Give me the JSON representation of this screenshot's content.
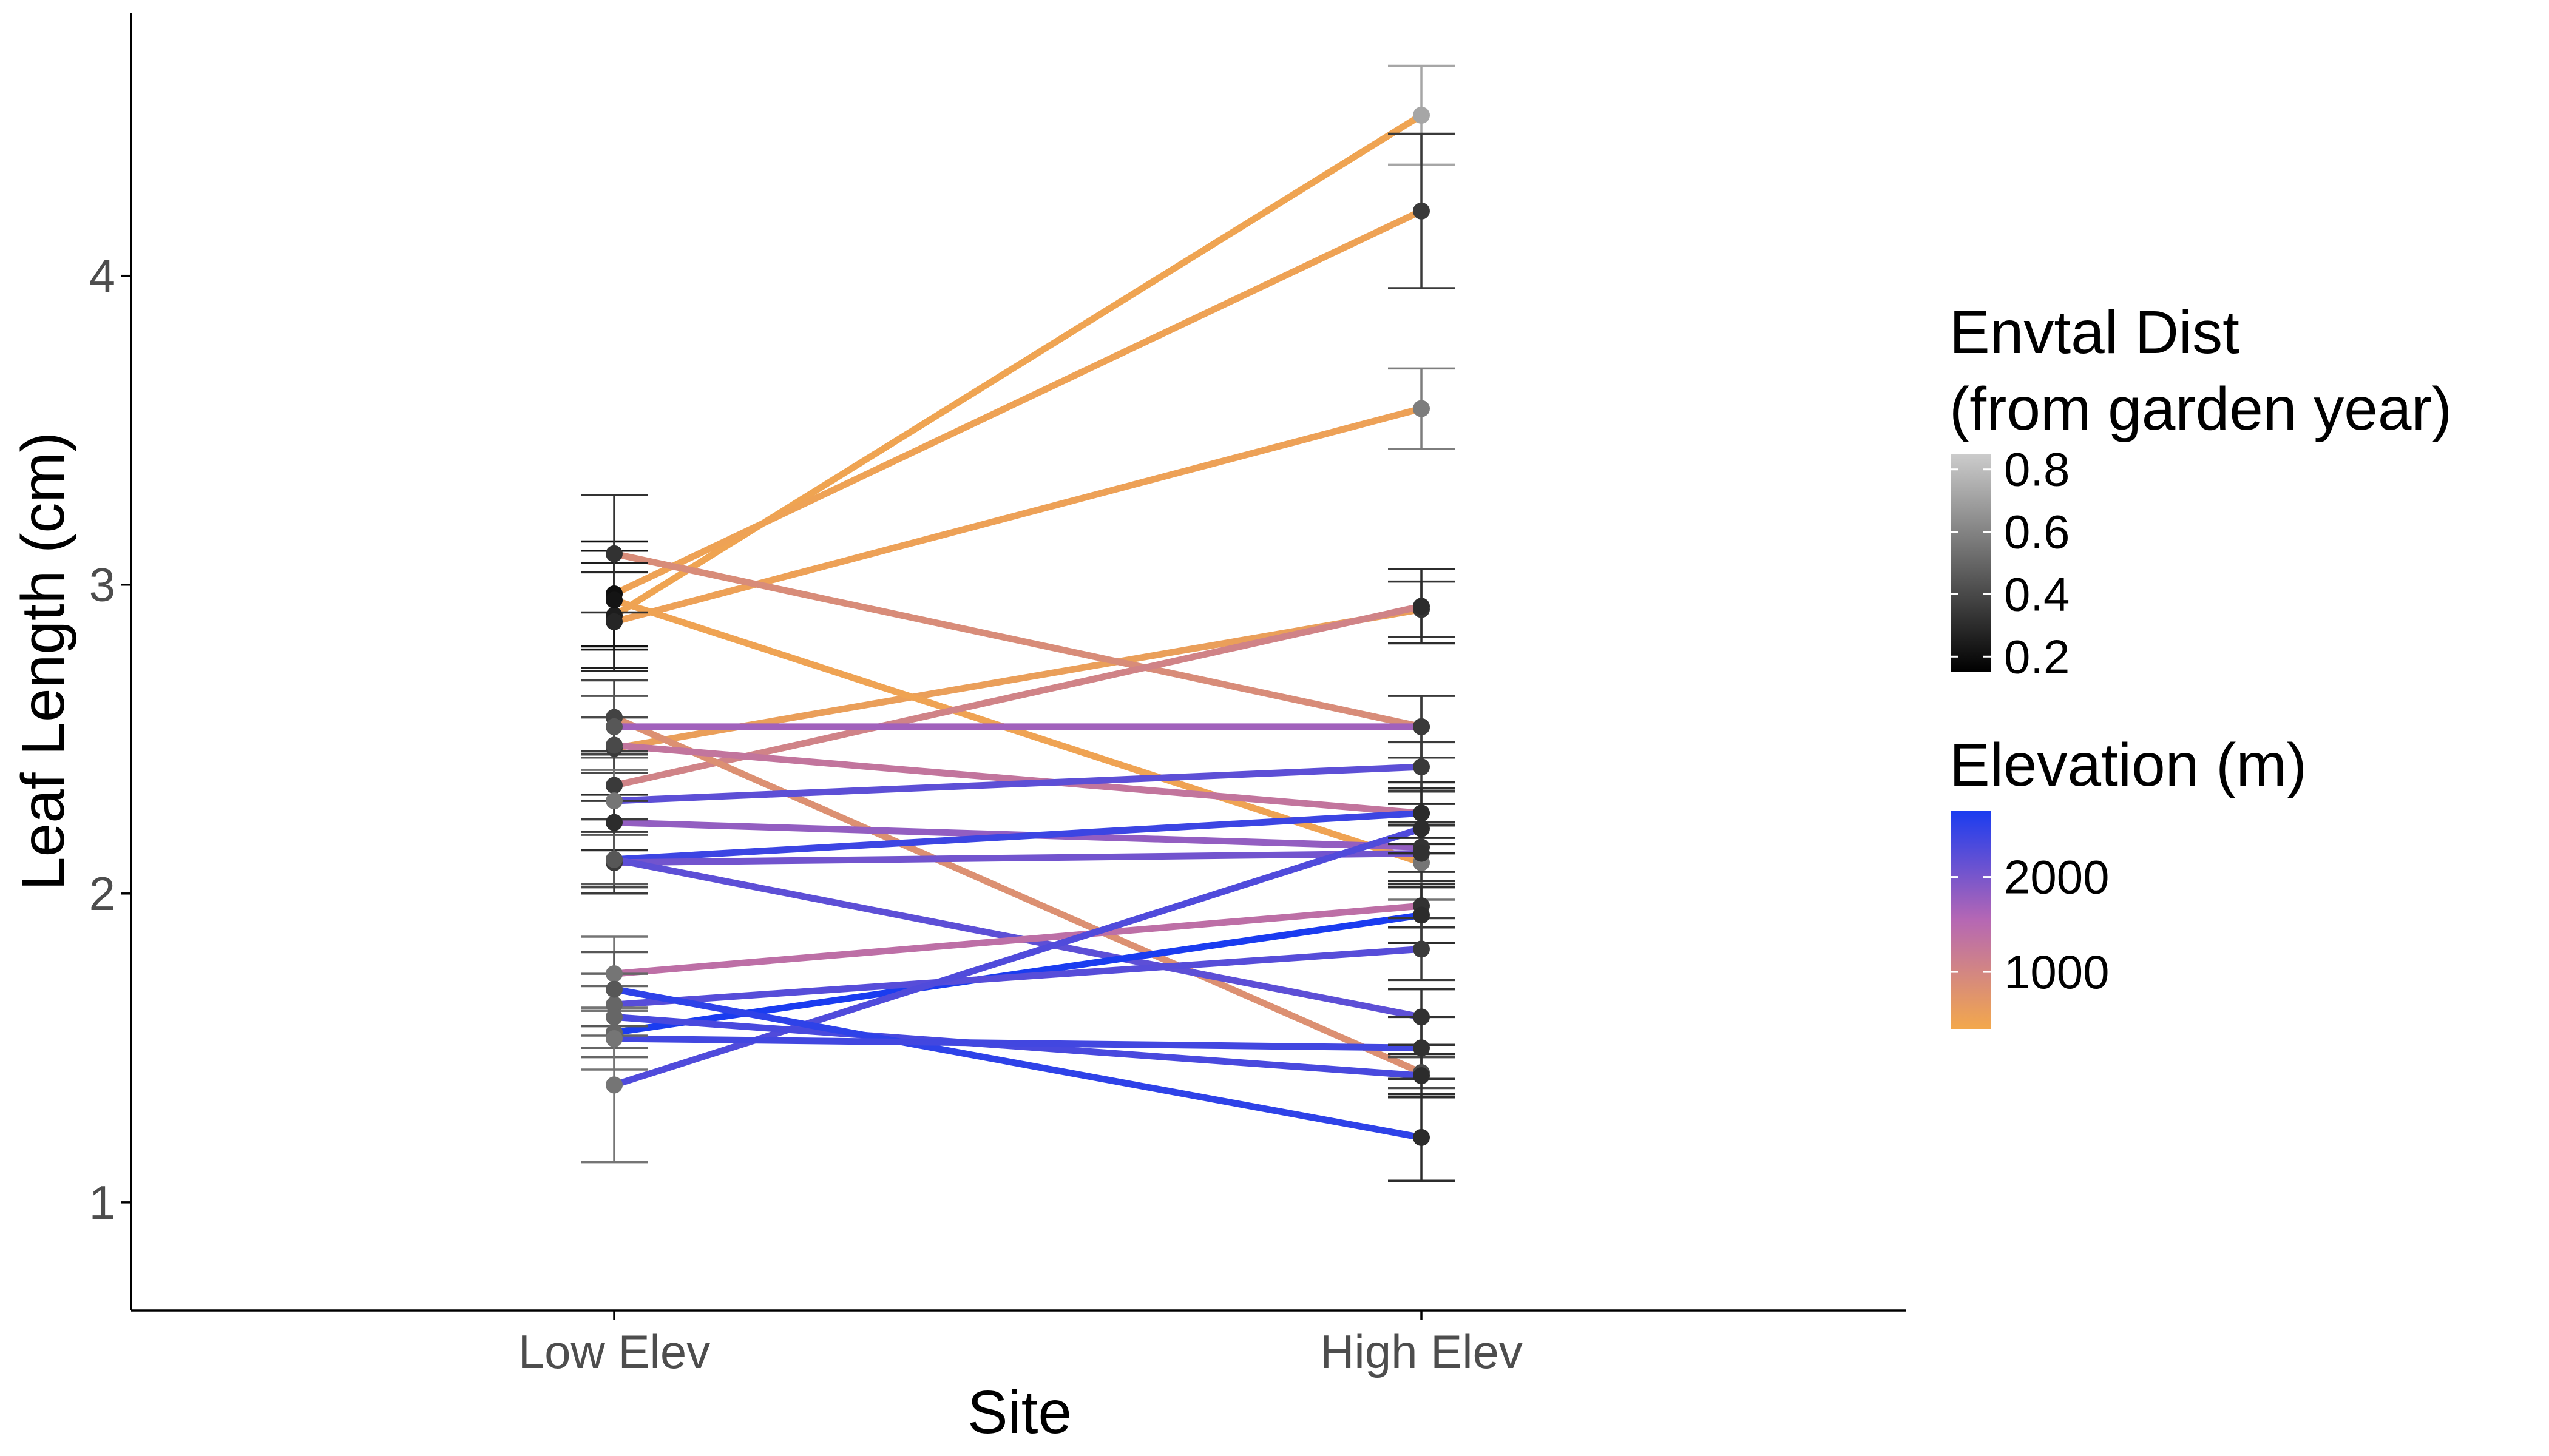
{
  "chart_data": {
    "type": "line",
    "xlabel": "Site",
    "ylabel": "Leaf Length (cm)",
    "categories": [
      "Low Elev",
      "High Elev"
    ],
    "y_ticks": [
      "1",
      "2",
      "3",
      "4"
    ],
    "ylim": [
      0.65,
      4.85
    ],
    "grid": false,
    "legend_position": "right",
    "legend_fill": {
      "title_lines": [
        "Envtal Dist",
        "(from garden year)"
      ],
      "labels": [
        "0.8",
        "0.6",
        "0.4",
        "0.2"
      ],
      "values": [
        0.8,
        0.6,
        0.4,
        0.2
      ],
      "range": [
        0.15,
        0.85
      ],
      "color_low": "#000000",
      "color_high": "#cccccc"
    },
    "legend_color": {
      "title": "Elevation (m)",
      "labels": [
        "2000",
        "1000"
      ],
      "values": [
        2000,
        1000
      ],
      "range": [
        400,
        2700
      ],
      "color_low": "#f3a84c",
      "color_mid": "#b567b4",
      "color_high": "#1a3cf0"
    },
    "series": [
      {
        "elevation": 470,
        "low": {
          "y": 2.9,
          "err": 0.17,
          "dist": 0.25
        },
        "high": {
          "y": 4.52,
          "err": 0.16,
          "dist": 0.72
        }
      },
      {
        "elevation": 500,
        "low": {
          "y": 2.97,
          "err": 0.17,
          "dist": 0.2
        },
        "high": {
          "y": 4.21,
          "err": 0.25,
          "dist": 0.35
        }
      },
      {
        "elevation": 520,
        "low": {
          "y": 2.88,
          "err": 0.16,
          "dist": 0.28
        },
        "high": {
          "y": 3.57,
          "err": 0.13,
          "dist": 0.58
        }
      },
      {
        "elevation": 560,
        "low": {
          "y": 2.47,
          "err": 0.17,
          "dist": 0.35
        },
        "high": {
          "y": 2.92,
          "err": 0.09,
          "dist": 0.33
        }
      },
      {
        "elevation": 480,
        "low": {
          "y": 2.95,
          "err": 0.16,
          "dist": 0.22
        },
        "high": {
          "y": 2.1,
          "err": 0.12,
          "dist": 0.55
        }
      },
      {
        "elevation": 900,
        "low": {
          "y": 3.1,
          "err": 0.19,
          "dist": 0.32
        },
        "high": {
          "y": 2.54,
          "err": 0.1,
          "dist": 0.35
        }
      },
      {
        "elevation": 1050,
        "low": {
          "y": 2.35,
          "err": 0.11,
          "dist": 0.35
        },
        "high": {
          "y": 2.93,
          "err": 0.12,
          "dist": 0.3
        }
      },
      {
        "elevation": 820,
        "low": {
          "y": 2.57,
          "err": 0.12,
          "dist": 0.38
        },
        "high": {
          "y": 1.42,
          "err": 0.05,
          "dist": 0.4
        }
      },
      {
        "elevation": 1700,
        "low": {
          "y": 2.54,
          "err": 0.1,
          "dist": 0.45
        },
        "high": {
          "y": 2.54,
          "err": 0.1,
          "dist": 0.35
        }
      },
      {
        "elevation": 1300,
        "low": {
          "y": 2.48,
          "err": 0.09,
          "dist": 0.4
        },
        "high": {
          "y": 2.26,
          "err": 0.1,
          "dist": 0.3
        }
      },
      {
        "elevation": 2200,
        "low": {
          "y": 2.3,
          "err": 0.1,
          "dist": 0.55
        },
        "high": {
          "y": 2.41,
          "err": 0.08,
          "dist": 0.35
        }
      },
      {
        "elevation": 1800,
        "low": {
          "y": 2.23,
          "err": 0.09,
          "dist": 0.3
        },
        "high": {
          "y": 2.15,
          "err": 0.08,
          "dist": 0.33
        }
      },
      {
        "elevation": 2450,
        "low": {
          "y": 2.11,
          "err": 0.09,
          "dist": 0.4
        },
        "high": {
          "y": 2.26,
          "err": 0.08,
          "dist": 0.3
        }
      },
      {
        "elevation": 2050,
        "low": {
          "y": 2.1,
          "err": 0.1,
          "dist": 0.35
        },
        "high": {
          "y": 2.13,
          "err": 0.09,
          "dist": 0.32
        }
      },
      {
        "elevation": 2200,
        "low": {
          "y": 2.11,
          "err": 0.08,
          "dist": 0.45
        },
        "high": {
          "y": 1.6,
          "err": 0.09,
          "dist": 0.32
        }
      },
      {
        "elevation": 1400,
        "low": {
          "y": 1.74,
          "err": 0.12,
          "dist": 0.55
        },
        "high": {
          "y": 1.96,
          "err": 0.07,
          "dist": 0.32
        }
      },
      {
        "elevation": 2700,
        "low": {
          "y": 1.55,
          "err": 0.08,
          "dist": 0.5
        },
        "high": {
          "y": 1.93,
          "err": 0.09,
          "dist": 0.3
        }
      },
      {
        "elevation": 2250,
        "low": {
          "y": 1.64,
          "err": 0.1,
          "dist": 0.5
        },
        "high": {
          "y": 1.82,
          "err": 0.1,
          "dist": 0.35
        }
      },
      {
        "elevation": 2300,
        "low": {
          "y": 1.38,
          "err": 0.25,
          "dist": 0.55
        },
        "high": {
          "y": 2.21,
          "err": 0.08,
          "dist": 0.3
        }
      },
      {
        "elevation": 2350,
        "low": {
          "y": 1.6,
          "err": 0.1,
          "dist": 0.5
        },
        "high": {
          "y": 1.41,
          "err": 0.07,
          "dist": 0.3
        }
      },
      {
        "elevation": 2550,
        "low": {
          "y": 1.69,
          "err": 0.12,
          "dist": 0.45
        },
        "high": {
          "y": 1.21,
          "err": 0.14,
          "dist": 0.3
        }
      },
      {
        "elevation": 2400,
        "low": {
          "y": 1.53,
          "err": 0.1,
          "dist": 0.55
        },
        "high": {
          "y": 1.5,
          "err": 0.1,
          "dist": 0.32
        }
      }
    ]
  }
}
